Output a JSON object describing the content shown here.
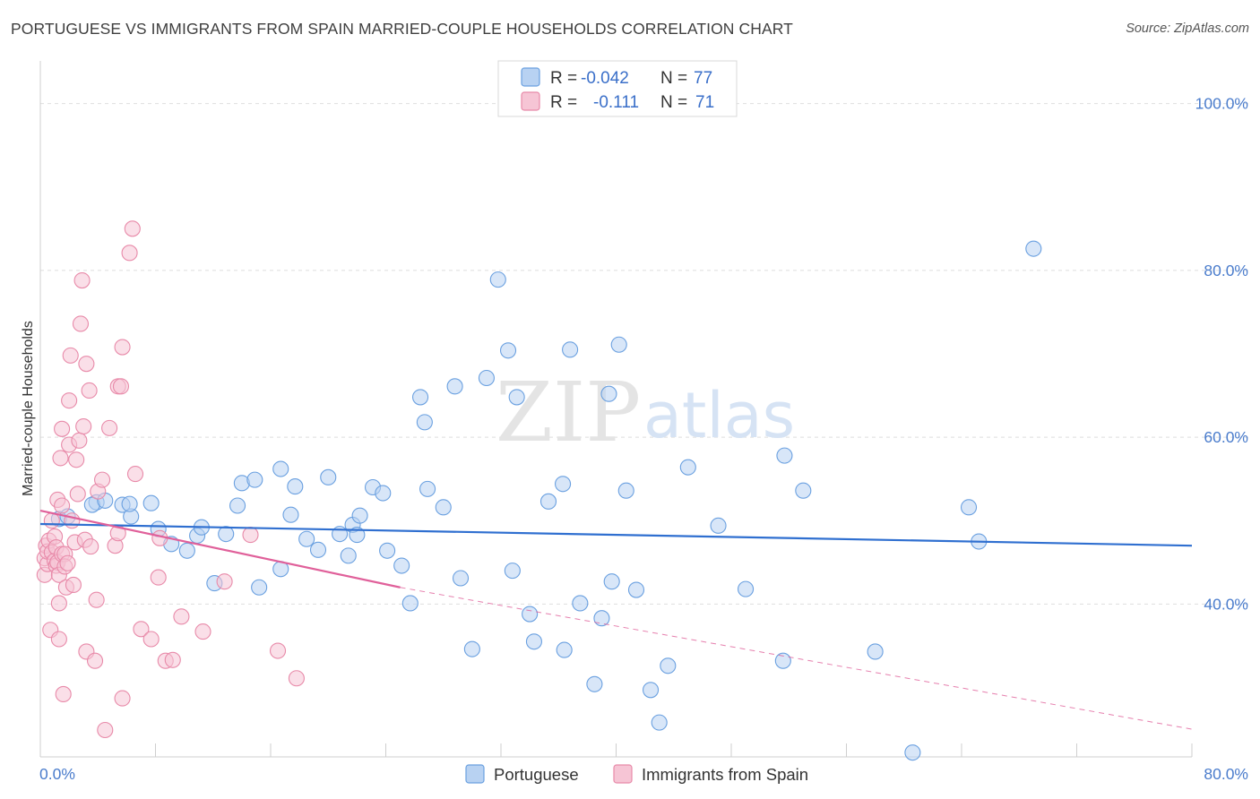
{
  "title": "PORTUGUESE VS IMMIGRANTS FROM SPAIN MARRIED-COUPLE HOUSEHOLDS CORRELATION CHART",
  "source": "Source: ZipAtlas.com",
  "colors": {
    "blue": "#6aa0e0",
    "blue_fill": "#b8d2f2",
    "blue_line": "#2f6fd0",
    "pink": "#e88aa9",
    "pink_fill": "#f6c5d5",
    "pink_line": "#e0609a",
    "grid": "#dedede",
    "tick": "#4a7ccc"
  },
  "legend": {
    "rows": [
      {
        "r_label": "R =",
        "r_value": "-0.042",
        "n_label": "N =",
        "n_value": "77"
      },
      {
        "r_label": "R =",
        "r_value": "-0.111",
        "n_label": "N =",
        "n_value": "71"
      }
    ]
  },
  "watermark": {
    "part1": "ZIP",
    "part2": "atlas"
  },
  "chart_data": {
    "type": "scatter",
    "ylabel": "Married-couple Households",
    "xlim": [
      0,
      80
    ],
    "ylim": [
      22,
      102
    ],
    "x_tick_labels": [
      {
        "value": 0,
        "label": "0.0%"
      },
      {
        "value": 80,
        "label": "80.0%"
      }
    ],
    "y_tick_labels": [
      {
        "value": 100,
        "label": "100.0%"
      },
      {
        "value": 80,
        "label": "80.0%"
      },
      {
        "value": 60,
        "label": "60.0%"
      },
      {
        "value": 40,
        "label": "40.0%"
      }
    ],
    "y_gridlines": [
      100,
      80,
      60,
      40
    ],
    "x_ticks": [
      0,
      8,
      16,
      24,
      32,
      40,
      48,
      56,
      64,
      72,
      80
    ],
    "series": [
      {
        "name": "Portuguese",
        "color": "#6aa0e0",
        "trend": {
          "x0": 0,
          "y0": 49.6,
          "x1": 80,
          "y1": 47.0,
          "style": "solid"
        },
        "points": [
          [
            1.3,
            50.2
          ],
          [
            1.9,
            50.5
          ],
          [
            3.9,
            52.2
          ],
          [
            3.6,
            51.9
          ],
          [
            4.5,
            52.4
          ],
          [
            5.7,
            51.9
          ],
          [
            6.3,
            50.5
          ],
          [
            6.2,
            52.0
          ],
          [
            8.2,
            49.0
          ],
          [
            7.7,
            52.1
          ],
          [
            9.1,
            47.2
          ],
          [
            10.2,
            46.4
          ],
          [
            10.9,
            48.2
          ],
          [
            11.2,
            49.2
          ],
          [
            12.1,
            42.5
          ],
          [
            12.9,
            48.4
          ],
          [
            13.7,
            51.8
          ],
          [
            14.0,
            54.5
          ],
          [
            14.9,
            54.9
          ],
          [
            15.2,
            42.0
          ],
          [
            16.7,
            56.2
          ],
          [
            16.7,
            44.2
          ],
          [
            17.4,
            50.7
          ],
          [
            17.7,
            54.1
          ],
          [
            18.5,
            47.8
          ],
          [
            19.3,
            46.5
          ],
          [
            20.0,
            55.2
          ],
          [
            20.8,
            48.4
          ],
          [
            21.4,
            45.8
          ],
          [
            21.7,
            49.5
          ],
          [
            22.0,
            48.3
          ],
          [
            22.2,
            50.6
          ],
          [
            23.1,
            54.0
          ],
          [
            23.8,
            53.3
          ],
          [
            24.1,
            46.4
          ],
          [
            25.1,
            44.6
          ],
          [
            25.7,
            40.1
          ],
          [
            26.4,
            64.8
          ],
          [
            26.7,
            61.8
          ],
          [
            26.9,
            53.8
          ],
          [
            28.0,
            51.6
          ],
          [
            28.8,
            66.1
          ],
          [
            29.2,
            43.1
          ],
          [
            30.0,
            34.6
          ],
          [
            31.0,
            67.1
          ],
          [
            31.8,
            78.9
          ],
          [
            32.5,
            70.4
          ],
          [
            32.8,
            44.0
          ],
          [
            33.1,
            64.8
          ],
          [
            34.0,
            38.8
          ],
          [
            34.3,
            35.5
          ],
          [
            35.3,
            52.3
          ],
          [
            36.3,
            54.4
          ],
          [
            36.4,
            34.5
          ],
          [
            36.8,
            70.5
          ],
          [
            37.5,
            40.1
          ],
          [
            38.5,
            30.4
          ],
          [
            39.0,
            38.3
          ],
          [
            39.5,
            65.2
          ],
          [
            39.7,
            42.7
          ],
          [
            40.2,
            71.1
          ],
          [
            40.7,
            53.6
          ],
          [
            41.4,
            41.7
          ],
          [
            42.4,
            29.7
          ],
          [
            43.0,
            25.8
          ],
          [
            43.6,
            32.6
          ],
          [
            45.0,
            56.4
          ],
          [
            47.1,
            49.4
          ],
          [
            49.0,
            41.8
          ],
          [
            51.6,
            33.2
          ],
          [
            51.7,
            57.8
          ],
          [
            53.0,
            53.6
          ],
          [
            58.0,
            34.3
          ],
          [
            60.6,
            22.2
          ],
          [
            69.0,
            82.6
          ],
          [
            65.2,
            47.5
          ],
          [
            64.5,
            51.6
          ]
        ]
      },
      {
        "name": "Immigrants from Spain",
        "color": "#e88aa9",
        "trend": {
          "x0": 0,
          "y0": 51.2,
          "x1": 25,
          "y1": 42.0,
          "dash_to_x": 80,
          "dash_to_y": 25.0,
          "style": "solid+dashed"
        },
        "points": [
          [
            0.3,
            45.5
          ],
          [
            0.3,
            43.5
          ],
          [
            0.4,
            47.0
          ],
          [
            0.5,
            44.8
          ],
          [
            0.5,
            46.3
          ],
          [
            0.6,
            47.6
          ],
          [
            0.7,
            36.9
          ],
          [
            0.8,
            46.2
          ],
          [
            0.8,
            50.0
          ],
          [
            1.0,
            48.1
          ],
          [
            1.0,
            45.2
          ],
          [
            1.1,
            44.6
          ],
          [
            1.1,
            46.8
          ],
          [
            1.2,
            45.0
          ],
          [
            1.2,
            52.5
          ],
          [
            1.3,
            40.1
          ],
          [
            1.3,
            35.8
          ],
          [
            1.3,
            43.5
          ],
          [
            1.4,
            57.5
          ],
          [
            1.5,
            51.8
          ],
          [
            1.5,
            46.0
          ],
          [
            1.5,
            61.0
          ],
          [
            1.6,
            29.2
          ],
          [
            1.7,
            46.0
          ],
          [
            1.7,
            44.5
          ],
          [
            1.8,
            42.0
          ],
          [
            1.9,
            44.9
          ],
          [
            2.0,
            64.4
          ],
          [
            2.0,
            59.1
          ],
          [
            2.1,
            69.8
          ],
          [
            2.2,
            50.0
          ],
          [
            2.3,
            42.3
          ],
          [
            2.4,
            47.4
          ],
          [
            2.5,
            57.3
          ],
          [
            2.6,
            53.2
          ],
          [
            2.7,
            59.6
          ],
          [
            2.8,
            73.6
          ],
          [
            2.9,
            78.8
          ],
          [
            3.0,
            61.3
          ],
          [
            3.1,
            47.7
          ],
          [
            3.2,
            68.8
          ],
          [
            3.2,
            34.3
          ],
          [
            3.4,
            65.6
          ],
          [
            3.5,
            46.9
          ],
          [
            3.8,
            33.2
          ],
          [
            3.9,
            40.5
          ],
          [
            4.0,
            53.5
          ],
          [
            4.3,
            54.9
          ],
          [
            4.5,
            24.9
          ],
          [
            4.8,
            61.1
          ],
          [
            5.2,
            47.0
          ],
          [
            5.4,
            48.5
          ],
          [
            5.4,
            66.1
          ],
          [
            5.6,
            66.1
          ],
          [
            5.7,
            28.7
          ],
          [
            5.7,
            70.8
          ],
          [
            6.2,
            82.1
          ],
          [
            6.4,
            85.0
          ],
          [
            6.6,
            55.6
          ],
          [
            7.0,
            37.0
          ],
          [
            7.7,
            35.8
          ],
          [
            8.2,
            43.2
          ],
          [
            8.3,
            47.9
          ],
          [
            8.7,
            33.2
          ],
          [
            9.2,
            33.3
          ],
          [
            9.8,
            38.5
          ],
          [
            11.3,
            36.7
          ],
          [
            12.8,
            42.7
          ],
          [
            14.6,
            48.3
          ],
          [
            16.5,
            34.4
          ],
          [
            17.8,
            31.1
          ]
        ]
      }
    ]
  },
  "bottom_legend": [
    "Portuguese",
    "Immigrants from Spain"
  ]
}
